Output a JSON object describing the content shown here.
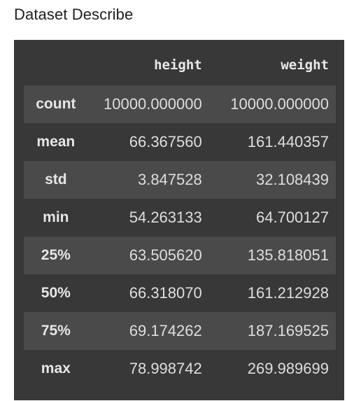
{
  "title": "Dataset Describe",
  "colors": {
    "panel_bg": "#383838",
    "odd_row_bg": "#4a4a4a",
    "text": "#dedede"
  },
  "columns": [
    "",
    "height",
    "weight"
  ],
  "rows": [
    {
      "label": "count",
      "height": "10000.000000",
      "weight": "10000.000000"
    },
    {
      "label": "mean",
      "height": "66.367560",
      "weight": "161.440357"
    },
    {
      "label": "std",
      "height": "3.847528",
      "weight": "32.108439"
    },
    {
      "label": "min",
      "height": "54.263133",
      "weight": "64.700127"
    },
    {
      "label": "25%",
      "height": "63.505620",
      "weight": "135.818051"
    },
    {
      "label": "50%",
      "height": "66.318070",
      "weight": "161.212928"
    },
    {
      "label": "75%",
      "height": "69.174262",
      "weight": "187.169525"
    },
    {
      "label": "max",
      "height": "78.998742",
      "weight": "269.989699"
    }
  ]
}
